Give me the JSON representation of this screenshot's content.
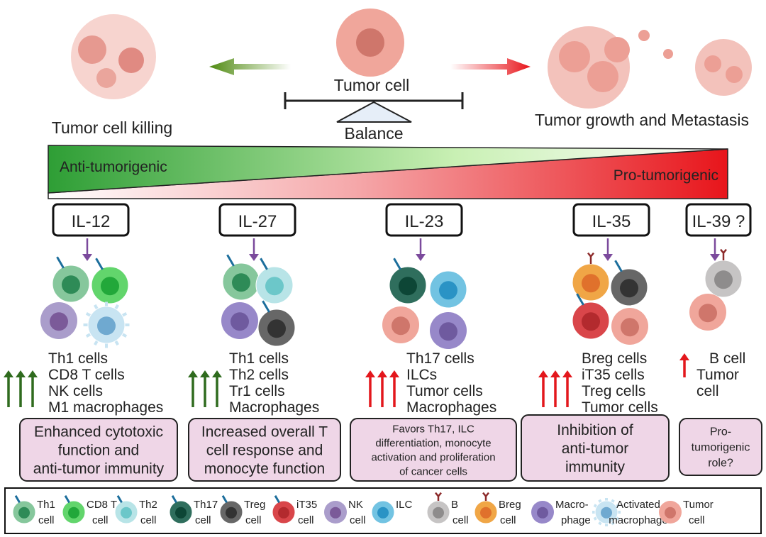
{
  "top": {
    "left_label": "Tumor cell killing",
    "center_label": "Tumor cell",
    "balance_label": "Balance",
    "right_label": "Tumor growth and Metastasis"
  },
  "gradient": {
    "anti": "Anti-tumorigenic",
    "pro": "Pro-tumorigenic",
    "anti_color": "#2e9e35",
    "pro_color": "#e8151b"
  },
  "columns": [
    {
      "il": "IL-12",
      "cells": [
        "th1",
        "cd8",
        "nk",
        "actmac"
      ],
      "trend": "up",
      "trend_color": "#2f6b1e",
      "list": [
        "Th1 cells",
        "CD8 T cells",
        "NK cells",
        "M1 macrophages"
      ],
      "effect": [
        "Enhanced cytotoxic",
        "function and",
        "anti-tumor immunity"
      ]
    },
    {
      "il": "IL-27",
      "cells": [
        "th1",
        "th2",
        "mac",
        "treg"
      ],
      "trend": "up",
      "trend_color": "#2f6b1e",
      "list": [
        "Th1 cells",
        "Th2 cells",
        "Tr1 cells",
        "Macrophages"
      ],
      "effect": [
        "Increased overall T",
        "cell response and",
        "monocyte function"
      ]
    },
    {
      "il": "IL-23",
      "cells": [
        "th17",
        "ilc",
        "tumor",
        "mac"
      ],
      "trend": "up",
      "trend_color": "#e3171c",
      "list": [
        "Th17 cells",
        "ILCs",
        "Tumor cells",
        "Macrophages"
      ],
      "effect": [
        "Favors Th17, ILC",
        "differentiation, monocyte",
        "activation and proliferation",
        "of cancer cells"
      ]
    },
    {
      "il": "IL-35",
      "cells": [
        "breg",
        "treg",
        "it35",
        "tumor"
      ],
      "trend": "up",
      "trend_color": "#e3171c",
      "list": [
        "Breg cells",
        "iT35 cells",
        "Treg cells",
        "Tumor cells"
      ],
      "effect": [
        "Inhibition of",
        "anti-tumor",
        "immunity"
      ]
    },
    {
      "il": "IL-39 ?",
      "cells": [
        "b",
        "tumor"
      ],
      "trend": "up",
      "trend_color": "#e3171c",
      "list": [
        "B cell",
        "Tumor",
        "cell"
      ],
      "effect": [
        "Pro-",
        "tumorigenic",
        "role?"
      ]
    }
  ],
  "legend": [
    {
      "key": "th1",
      "l1": "Th1",
      "l2": "cell"
    },
    {
      "key": "cd8",
      "l1": "CD8 T",
      "l2": "cell"
    },
    {
      "key": "th2",
      "l1": "Th2",
      "l2": "cell"
    },
    {
      "key": "th17",
      "l1": "Th17",
      "l2": "cell"
    },
    {
      "key": "treg",
      "l1": "Treg",
      "l2": "cell"
    },
    {
      "key": "it35",
      "l1": "iT35",
      "l2": "cell"
    },
    {
      "key": "nk",
      "l1": "NK",
      "l2": "cell"
    },
    {
      "key": "ilc",
      "l1": "ILC",
      "l2": ""
    },
    {
      "key": "b",
      "l1": "B",
      "l2": "cell"
    },
    {
      "key": "breg",
      "l1": "Breg",
      "l2": "cell"
    },
    {
      "key": "mac",
      "l1": "Macro-",
      "l2": "phage"
    },
    {
      "key": "actmac",
      "l1": "Activated",
      "l2": "macrophage"
    },
    {
      "key": "tumor",
      "l1": "Tumor",
      "l2": "cell"
    }
  ],
  "cell_colors": {
    "th1": [
      "#86c79c",
      "#2e8b57"
    ],
    "cd8": [
      "#62d56c",
      "#22a83a"
    ],
    "th2": [
      "#b8e4e7",
      "#6cc7c9"
    ],
    "th17": [
      "#2f6e5d",
      "#0d4636"
    ],
    "treg": [
      "#676767",
      "#333333"
    ],
    "it35": [
      "#d9464a",
      "#b32a2e"
    ],
    "nk": [
      "#aa9dcb",
      "#7b5a99"
    ],
    "ilc": [
      "#72c3e2",
      "#2a93c5"
    ],
    "b": [
      "#c6c4c4",
      "#8e8c8c"
    ],
    "breg": [
      "#f0a646",
      "#e0712c"
    ],
    "mac": [
      "#9788c9",
      "#6f5a9f"
    ],
    "actmac": [
      "#c8e4f2",
      "#6fa9d0"
    ],
    "tumor": [
      "#f0a69b",
      "#cf766b"
    ]
  }
}
